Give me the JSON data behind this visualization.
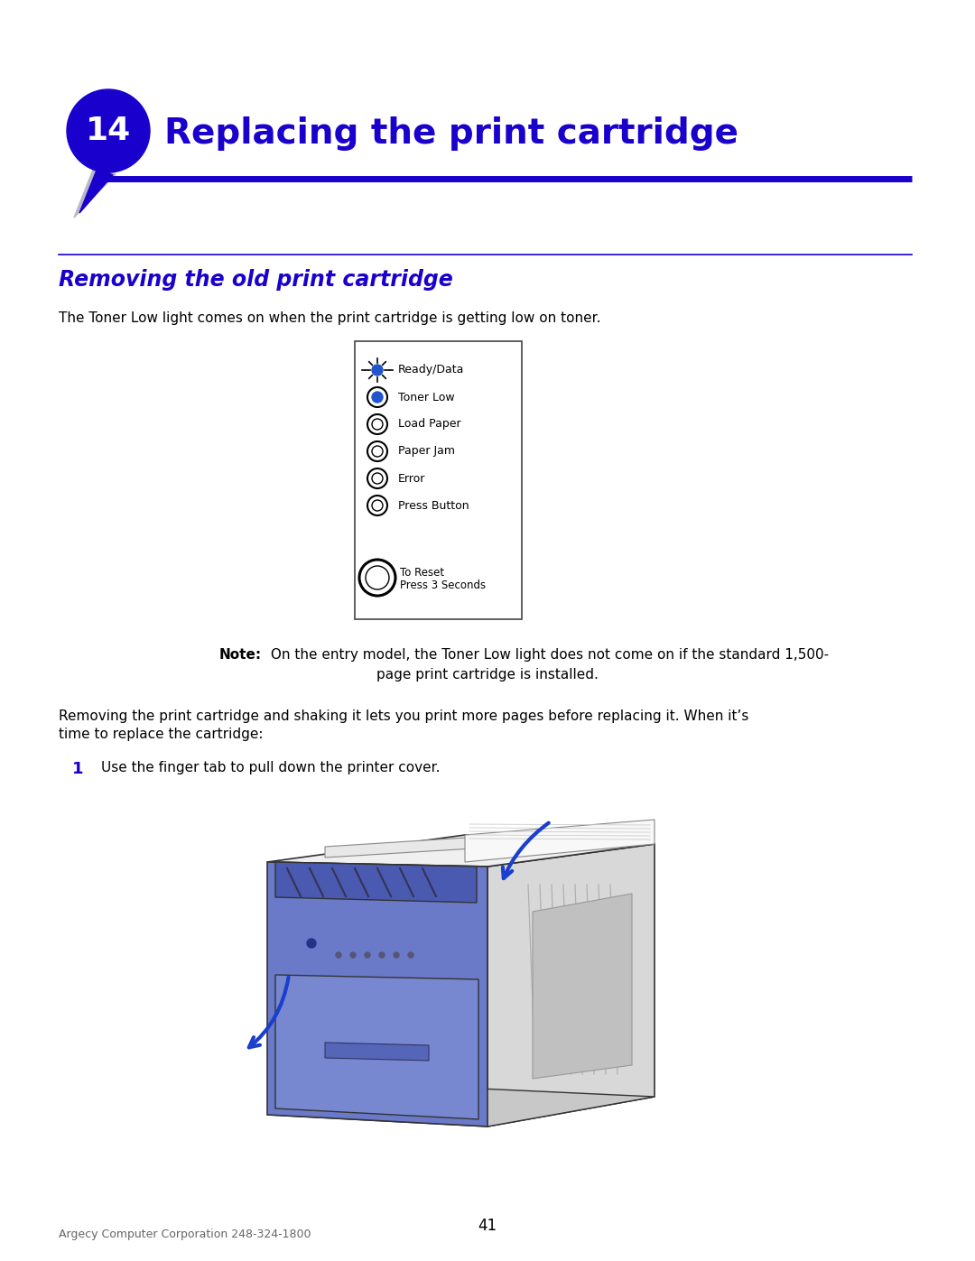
{
  "bg_color": "#ffffff",
  "chapter_num": "14",
  "chapter_num_color": "#ffffff",
  "chapter_badge_color": "#1a00cc",
  "chapter_title": "Replacing the print cartridge",
  "chapter_title_color": "#1a00cc",
  "line_color": "#1a00cc",
  "section_title": "Removing the old print cartridge",
  "section_title_color": "#1a00cc",
  "body_text_color": "#000000",
  "intro_text": "The Toner Low light comes on when the print cartridge is getting low on toner.",
  "panel_labels": [
    "Ready/Data",
    "Toner Low",
    "Load Paper",
    "Paper Jam",
    "Error",
    "Press Button"
  ],
  "panel_reset_label1": "To Reset",
  "panel_reset_label2": "Press 3 Seconds",
  "note_bold": "Note:",
  "note_line1": " On the entry model, the Toner Low light does not come on if the standard 1,500-",
  "note_line2": "page print cartridge is installed.",
  "body_text2_line1": "Removing the print cartridge and shaking it lets you print more pages before replacing it. When it’s",
  "body_text2_line2": "time to replace the cartridge:",
  "step1_num": "1",
  "step1_text": "Use the finger tab to pull down the printer cover.",
  "footer_text": "Argecy Computer Corporation 248-324-1800",
  "page_num": "41",
  "printer_blue": "#6a7ac8",
  "printer_blue_dark": "#4a5ab0",
  "printer_gray": "#d8d8d8",
  "printer_gray_dark": "#b0b0b0",
  "arrow_color": "#1a3fcc"
}
